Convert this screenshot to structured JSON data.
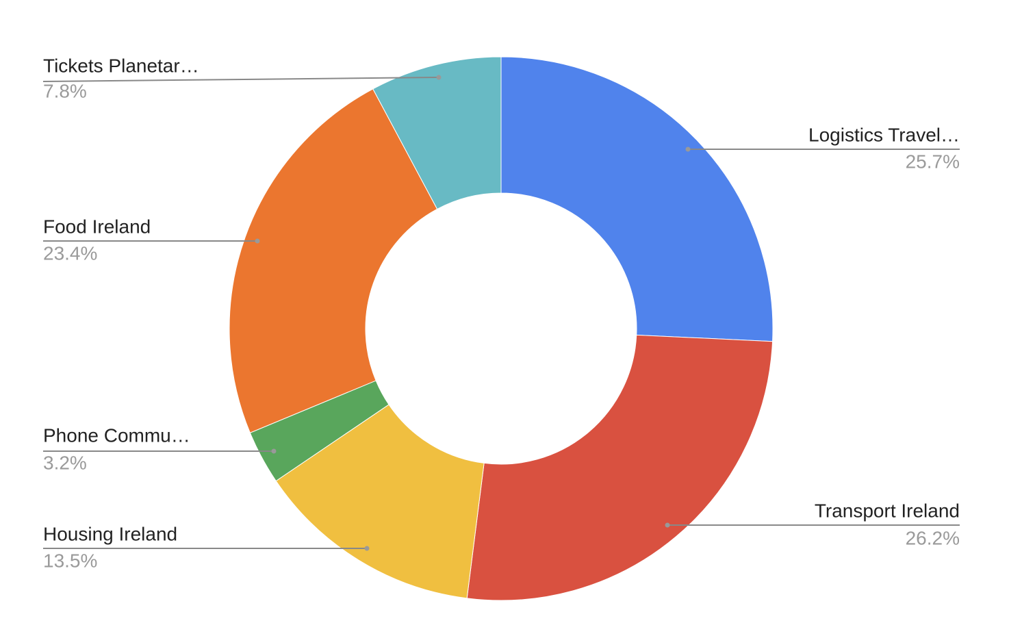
{
  "chart_data": {
    "type": "donut",
    "categories": [
      "Logistics Travel…",
      "Transport Ireland",
      "Housing Ireland",
      "Phone Commu…",
      "Food Ireland",
      "Tickets Planetar…"
    ],
    "values": [
      25.7,
      26.2,
      13.5,
      3.2,
      23.4,
      7.8
    ],
    "value_labels": [
      "25.7%",
      "26.2%",
      "13.5%",
      "3.2%",
      "23.4%",
      "7.8%"
    ],
    "colors": [
      "#5083ec",
      "#d95140",
      "#f0bf40",
      "#59a65c",
      "#eb762f",
      "#68bac4"
    ]
  }
}
